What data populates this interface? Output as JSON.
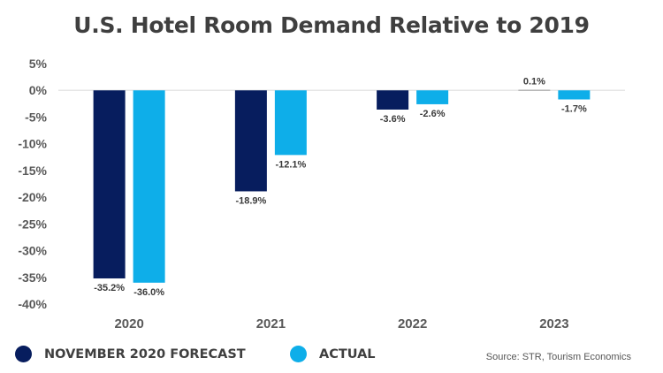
{
  "chart_data": {
    "type": "bar",
    "title": "U.S. Hotel Room Demand Relative to 2019",
    "xlabel": "",
    "ylabel": "",
    "categories": [
      "2020",
      "2021",
      "2022",
      "2023"
    ],
    "series": [
      {
        "name": "NOVEMBER 2020 FORECAST",
        "color": "#071D5E",
        "values": [
          -35.2,
          -18.9,
          -3.6,
          0.1
        ],
        "labels": [
          "-35.2%",
          "-18.9%",
          "-3.6%",
          "0.1%"
        ]
      },
      {
        "name": "ACTUAL",
        "color": "#0EAEE9",
        "values": [
          -36.0,
          -12.1,
          -2.6,
          -1.7
        ],
        "labels": [
          "-36.0%",
          "-12.1%",
          "-2.6%",
          "-1.7%"
        ]
      }
    ],
    "ylim": [
      -40,
      5
    ],
    "yticks": [
      5,
      0,
      -5,
      -10,
      -15,
      -20,
      -25,
      -30,
      -35,
      -40
    ],
    "ytick_labels": [
      "5%",
      "0%",
      "-5%",
      "-10%",
      "-15%",
      "-20%",
      "-25%",
      "-30%",
      "-35%",
      "-40%"
    ],
    "grid": false,
    "zero_line_color": "#e6e6e6",
    "legend_position": "bottom-left",
    "source": "Source: STR, Tourism Economics"
  }
}
